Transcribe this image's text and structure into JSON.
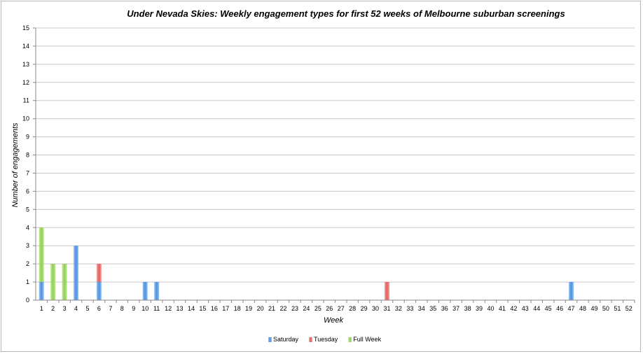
{
  "chart_data": {
    "type": "bar",
    "stacked": true,
    "title": "Under Nevada Skies: Weekly engagement types for first 52 weeks of Melbourne suburban screenings",
    "xlabel": "Week",
    "ylabel": "Number of engagements",
    "ylim": [
      0,
      15
    ],
    "yticks": [
      0,
      1,
      2,
      3,
      4,
      5,
      6,
      7,
      8,
      9,
      10,
      11,
      12,
      13,
      14,
      15
    ],
    "grid": true,
    "legend_position": "bottom",
    "categories": [
      "1",
      "2",
      "3",
      "4",
      "5",
      "6",
      "7",
      "8",
      "9",
      "10",
      "11",
      "12",
      "13",
      "14",
      "15",
      "16",
      "17",
      "18",
      "19",
      "20",
      "21",
      "22",
      "23",
      "24",
      "25",
      "26",
      "27",
      "28",
      "29",
      "30",
      "31",
      "32",
      "33",
      "34",
      "35",
      "36",
      "37",
      "38",
      "39",
      "40",
      "41",
      "42",
      "43",
      "44",
      "45",
      "46",
      "47",
      "48",
      "49",
      "50",
      "51",
      "52"
    ],
    "series": [
      {
        "name": "Saturday",
        "color": "#4a90e2",
        "values": [
          1,
          0,
          0,
          3,
          0,
          1,
          0,
          0,
          0,
          1,
          1,
          0,
          0,
          0,
          0,
          0,
          0,
          0,
          0,
          0,
          0,
          0,
          0,
          0,
          0,
          0,
          0,
          0,
          0,
          0,
          0,
          0,
          0,
          0,
          0,
          0,
          0,
          0,
          0,
          0,
          0,
          0,
          0,
          0,
          0,
          0,
          1,
          0,
          0,
          0,
          0,
          0
        ]
      },
      {
        "name": "Tuesday",
        "color": "#e85a5a",
        "values": [
          0,
          0,
          0,
          0,
          0,
          1,
          0,
          0,
          0,
          0,
          0,
          0,
          0,
          0,
          0,
          0,
          0,
          0,
          0,
          0,
          0,
          0,
          0,
          0,
          0,
          0,
          0,
          0,
          0,
          0,
          1,
          0,
          0,
          0,
          0,
          0,
          0,
          0,
          0,
          0,
          0,
          0,
          0,
          0,
          0,
          0,
          0,
          0,
          0,
          0,
          0,
          0
        ]
      },
      {
        "name": "Full Week",
        "color": "#8fd14f",
        "values": [
          3,
          2,
          2,
          0,
          0,
          0,
          0,
          0,
          0,
          0,
          0,
          0,
          0,
          0,
          0,
          0,
          0,
          0,
          0,
          0,
          0,
          0,
          0,
          0,
          0,
          0,
          0,
          0,
          0,
          0,
          0,
          0,
          0,
          0,
          0,
          0,
          0,
          0,
          0,
          0,
          0,
          0,
          0,
          0,
          0,
          0,
          0,
          0,
          0,
          0,
          0,
          0
        ]
      }
    ]
  }
}
